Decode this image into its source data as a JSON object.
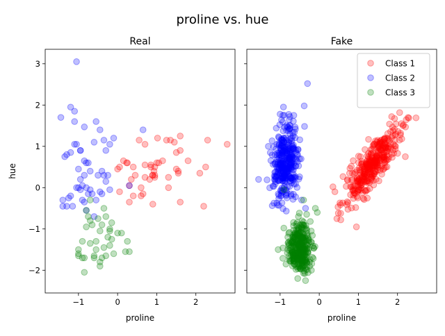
{
  "figure": {
    "suptitle": "proline vs. hue"
  },
  "chart_data": [
    {
      "type": "scatter",
      "title": "Real",
      "xlabel": "proline",
      "ylabel": "hue",
      "xlim": [
        -1.85,
        3.0
      ],
      "ylim": [
        -2.55,
        3.35
      ],
      "xticks": [
        -1,
        0,
        1,
        2
      ],
      "yticks": [
        -2,
        -1,
        0,
        1,
        2,
        3
      ],
      "grid": false,
      "series": [
        {
          "name": "Class 1",
          "color": "#ff0000",
          "x": [
            0.95,
            0.89,
            0.7,
            0.93,
            0.55,
            1.02,
            1.25,
            1.35,
            0.15,
            0.23,
            0.4,
            0.82,
            0.85,
            1.5,
            1.6,
            1.55,
            1.45,
            2.3,
            2.25,
            2.8,
            1.0,
            1.55,
            0.95,
            1.8,
            0.6,
            2.1,
            0.3,
            1.5,
            0.85,
            1.15,
            0.7,
            0.0,
            0.05,
            0.3,
            0.65,
            1.3,
            0.9,
            2.2,
            1.6,
            1.05,
            0.4,
            1.6,
            0.05,
            0.35,
            0.45,
            0.95,
            0.6,
            0.25,
            0.9,
            1.3,
            0.7
          ],
          "y": [
            0.25,
            0.3,
            0.25,
            0.4,
            1.15,
            1.2,
            1.15,
            1.15,
            0.65,
            0.6,
            0.5,
            0.2,
            0.55,
            0.85,
            0.9,
            0.4,
            1.1,
            1.15,
            0.5,
            1.05,
            0.6,
            0.35,
            0.3,
            0.65,
            0.0,
            0.35,
            0.05,
            0.45,
            0.5,
            0.65,
            1.05,
            0.45,
            -0.1,
            -0.35,
            -0.15,
            0.25,
            -0.4,
            -0.45,
            -0.35,
            0.6,
            -0.2,
            1.25,
            0.5,
            0.2,
            0.3,
            0.5,
            -0.2,
            0.6,
            0.3,
            0.0,
            0.55
          ]
        },
        {
          "name": "Class 2",
          "color": "#0000ff",
          "x": [
            -1.05,
            -1.1,
            -0.55,
            -1.2,
            -0.85,
            -1.45,
            -1.1,
            -0.35,
            -1.05,
            -1.1,
            -0.95,
            -0.6,
            -0.2,
            -0.45,
            -0.3,
            -0.8,
            -0.85,
            -0.5,
            -1.0,
            -0.75,
            -1.35,
            -1.2,
            -0.95,
            -1.3,
            -0.1,
            -0.4,
            -0.25,
            -0.9,
            -0.8,
            -1.05,
            -0.7,
            -1.2,
            -0.65,
            -0.9,
            -0.55,
            -1.15,
            -0.85,
            -1.4,
            -0.45,
            -0.75,
            -1.25,
            -0.95,
            -0.2,
            -0.35,
            -1.0,
            -0.4,
            0.65,
            0.3,
            -0.3,
            -0.8,
            -1.3,
            -0.6,
            -0.85,
            -0.7,
            -1.4,
            -0.95
          ],
          "y": [
            3.05,
            1.85,
            1.6,
            1.95,
            1.47,
            1.7,
            1.6,
            1.15,
            1.05,
            1.05,
            0.9,
            1.1,
            1.05,
            1.4,
            0.9,
            0.6,
            0.3,
            0.3,
            0.45,
            0.6,
            0.75,
            0.85,
            0.9,
            0.8,
            1.2,
            0.4,
            0.3,
            0.05,
            0.0,
            0.0,
            -0.05,
            -0.2,
            -0.15,
            -0.3,
            -0.3,
            -0.45,
            -0.35,
            -0.45,
            -0.1,
            -0.15,
            -0.25,
            -0.05,
            -0.05,
            0.3,
            0.0,
            -0.15,
            1.4,
            0.05,
            0.15,
            -0.55,
            -0.45,
            -0.7,
            0.65,
            0.4,
            -0.3,
            0.2
          ]
        },
        {
          "name": "Class 3",
          "color": "#008000",
          "x": [
            -0.85,
            -0.45,
            -1.0,
            -0.6,
            -0.1,
            0.2,
            0.3,
            -0.55,
            -0.7,
            -0.35,
            -0.25,
            0.0,
            -0.45,
            -0.2,
            -0.8,
            -0.65,
            -0.4,
            -0.15,
            0.25,
            -0.55,
            -0.3,
            -1.0,
            -0.9,
            -0.7,
            -0.3,
            -0.5,
            -0.75,
            -0.2,
            0.1,
            -0.4,
            -1.0,
            -0.85,
            -0.6,
            -0.2,
            -0.8,
            -0.35,
            -0.15,
            -0.9,
            -0.45,
            -0.7
          ],
          "y": [
            -2.05,
            -1.9,
            -1.65,
            -1.7,
            -1.6,
            -1.55,
            -1.55,
            -1.5,
            -1.35,
            -1.45,
            -1.2,
            -1.1,
            -1.05,
            -1.0,
            -0.95,
            -0.9,
            -0.9,
            -0.85,
            -1.3,
            -1.3,
            -1.65,
            -1.5,
            -1.3,
            -0.8,
            -0.7,
            -0.75,
            -0.7,
            -1.4,
            -1.1,
            -1.7,
            -1.6,
            -1.7,
            -1.65,
            -1.05,
            -0.55,
            -0.5,
            -1.25,
            -1.7,
            -1.8,
            -0.3
          ]
        }
      ]
    },
    {
      "type": "scatter",
      "title": "Fake",
      "xlabel": "proline",
      "legend": {
        "placement": "top-right",
        "entries": [
          "Class 1",
          "Class 2",
          "Class 3"
        ]
      },
      "xlim": [
        -1.85,
        3.0
      ],
      "ylim": [
        -2.55,
        3.35
      ],
      "xticks": [
        -1,
        0,
        1,
        2
      ],
      "yticks": [
        -2,
        -1,
        0,
        1,
        2,
        3
      ],
      "grid": false,
      "series": [
        {
          "name": "Class 1",
          "color": "#ff0000",
          "count": 350,
          "center": [
            1.35,
            0.55
          ],
          "spread": [
            0.33,
            0.45
          ],
          "correlation": 0.82,
          "x": [
            0.35,
            0.45,
            0.55,
            0.95,
            0.85,
            1.85,
            2.1,
            2.15,
            2.05,
            1.95,
            2.2,
            1.7,
            0.4
          ],
          "y": [
            0.02,
            -0.75,
            -0.78,
            -0.95,
            0.35,
            1.72,
            1.55,
            1.52,
            1.15,
            1.0,
            0.75,
            0.65,
            -0.1
          ]
        },
        {
          "name": "Class 2",
          "color": "#0000ff",
          "count": 350,
          "center": [
            -0.85,
            0.65
          ],
          "spread": [
            0.16,
            0.45
          ],
          "correlation": 0.15,
          "x": [
            -0.3,
            -1.55,
            -1.25,
            -1.3,
            -0.65,
            -0.35,
            -1.0,
            -0.75,
            -0.45
          ],
          "y": [
            2.52,
            0.2,
            0.85,
            1.0,
            1.75,
            -0.5,
            1.78,
            1.72,
            -0.3
          ]
        },
        {
          "name": "Class 3",
          "color": "#008000",
          "count": 330,
          "center": [
            -0.5,
            -1.45
          ],
          "spread": [
            0.14,
            0.3
          ],
          "correlation": 0.0,
          "x": [
            -0.9,
            -0.4,
            -0.35,
            -0.1,
            -0.05,
            -0.55,
            -0.2,
            -1.05,
            -0.85
          ],
          "y": [
            -0.05,
            -0.3,
            -2.25,
            -0.5,
            -0.6,
            -2.2,
            -2.0,
            -1.5,
            -1.85
          ]
        }
      ]
    }
  ]
}
